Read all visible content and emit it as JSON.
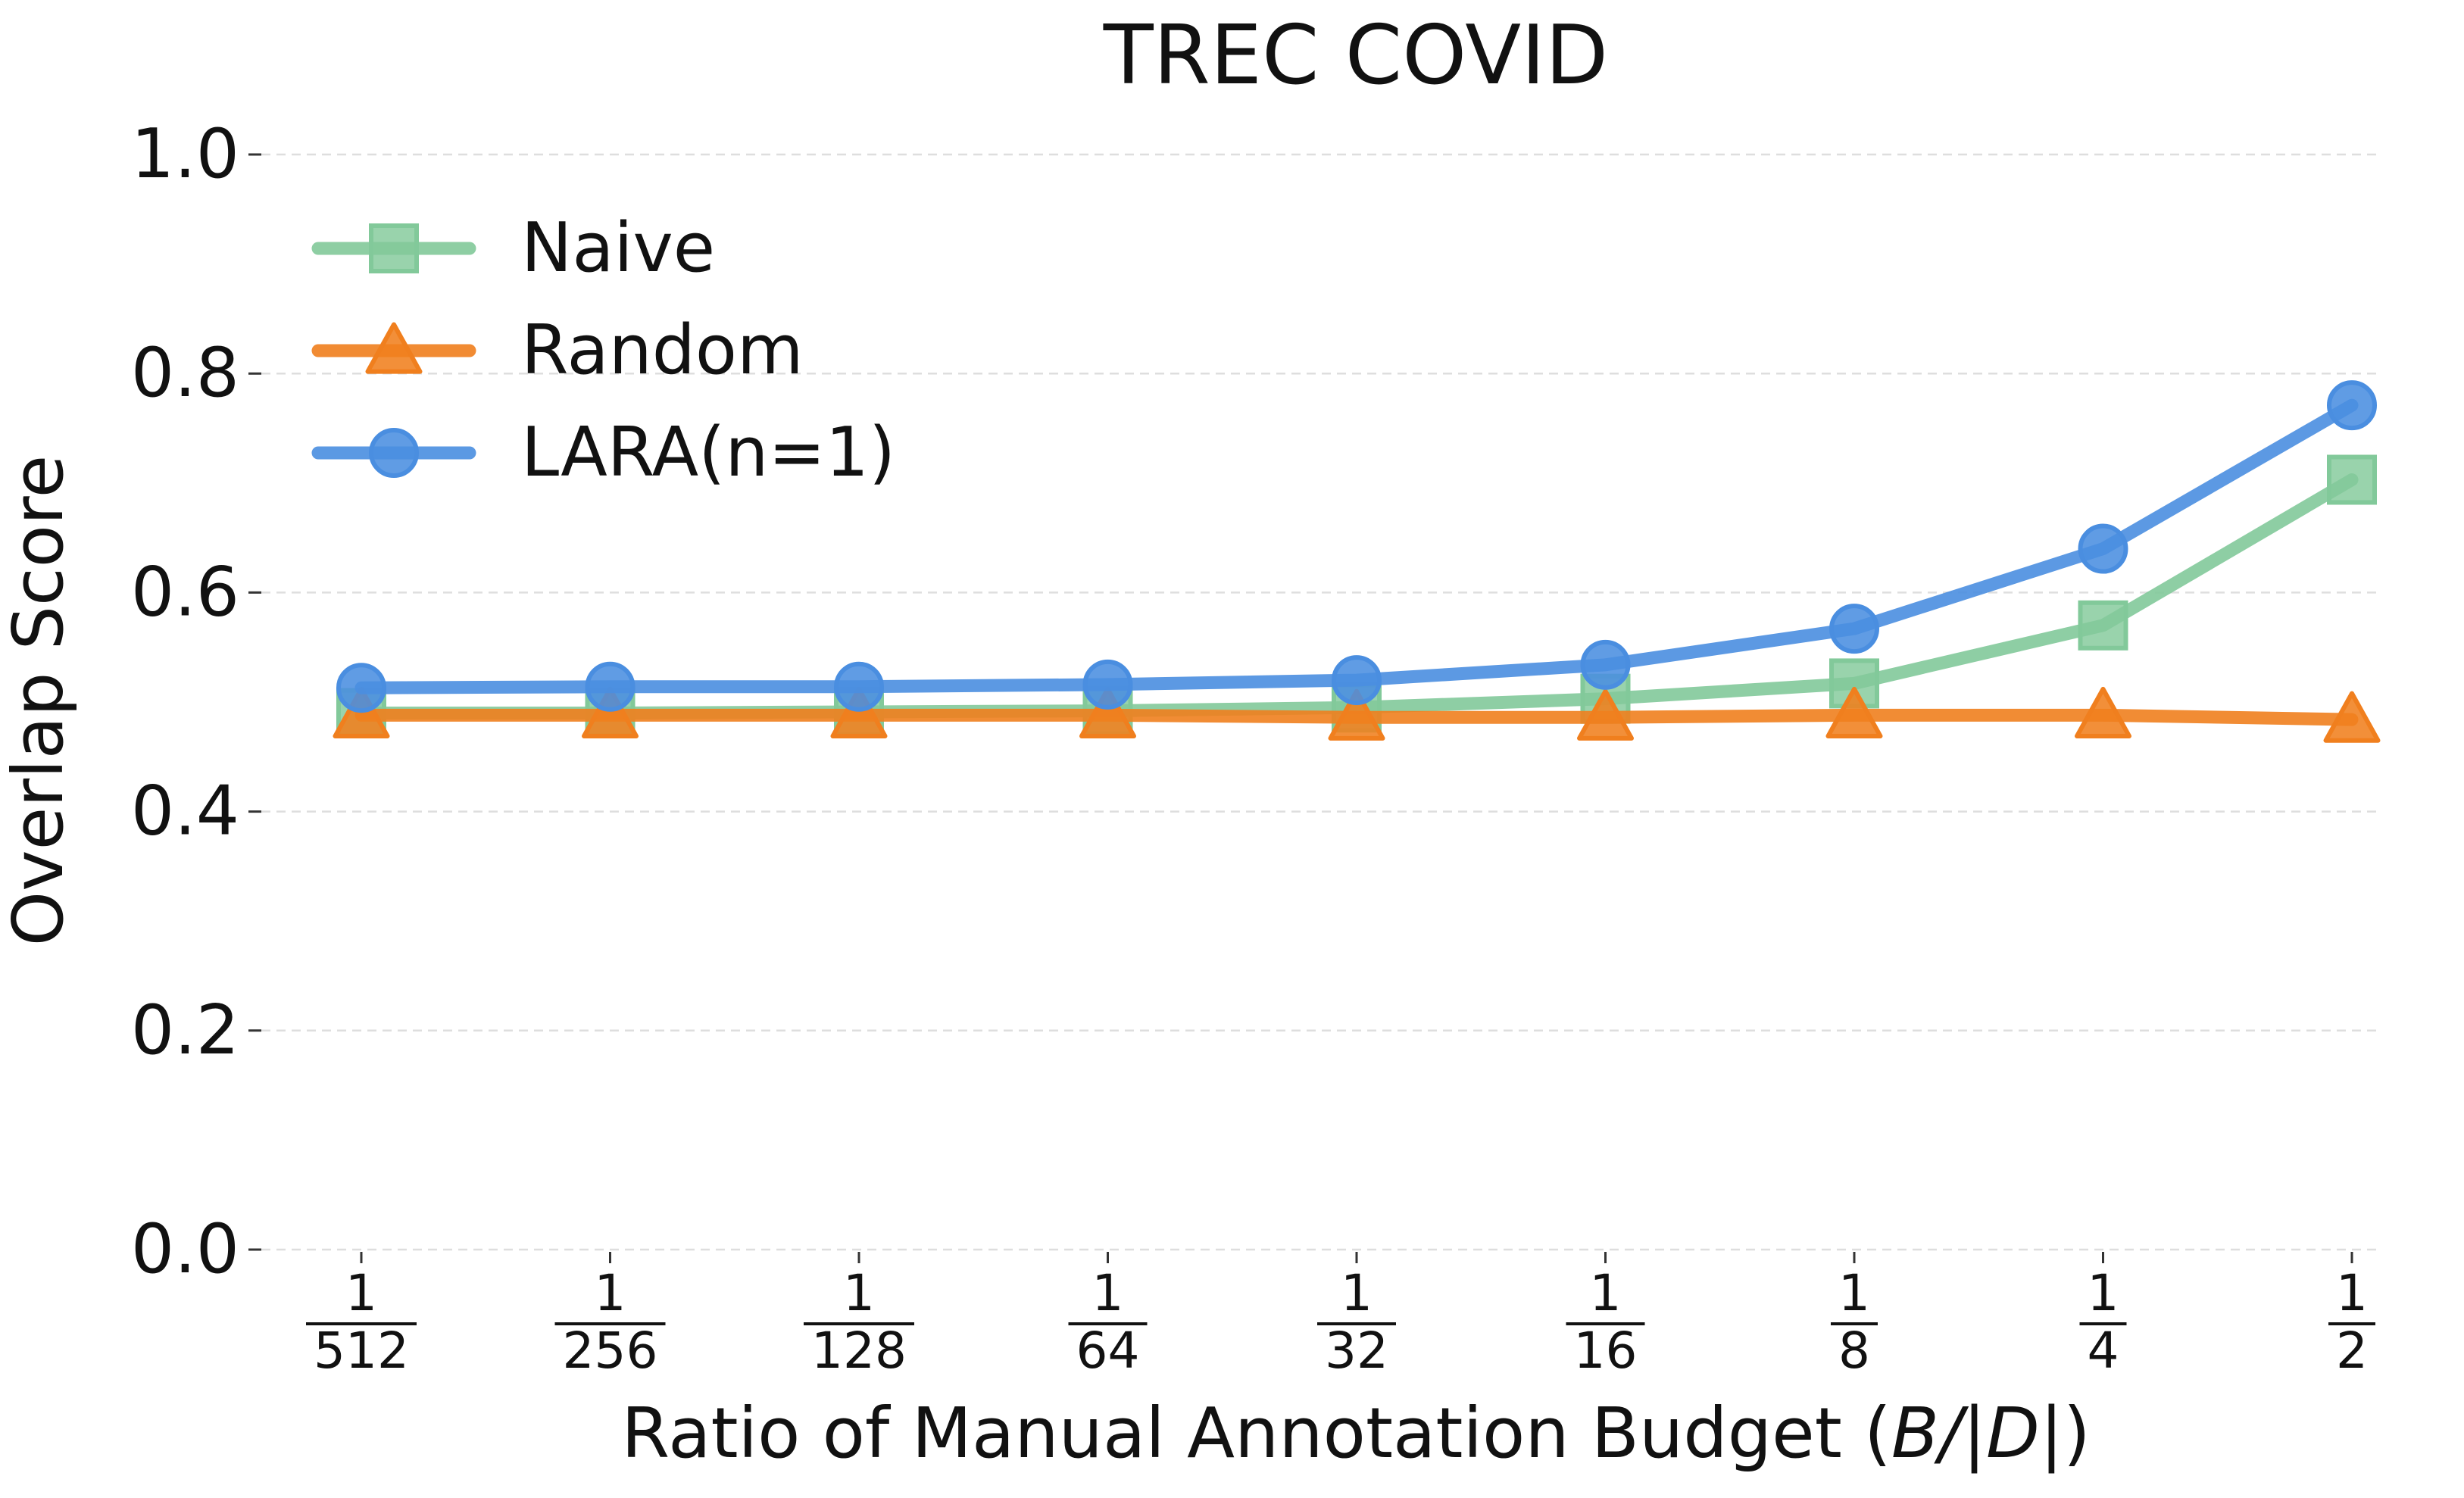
{
  "chart_data": {
    "type": "line",
    "title": "TREC COVID",
    "xlabel_prefix": "Ratio of Manual Annotation Budget (",
    "xlabel_math": "B/|D|",
    "xlabel_suffix": ")",
    "ylabel": "Overlap Score",
    "ylim": [
      0.0,
      1.0
    ],
    "yticks": [
      "0.0",
      "0.2",
      "0.4",
      "0.6",
      "0.8",
      "1.0"
    ],
    "categories": [
      {
        "num": "1",
        "den": "512"
      },
      {
        "num": "1",
        "den": "256"
      },
      {
        "num": "1",
        "den": "128"
      },
      {
        "num": "1",
        "den": "64"
      },
      {
        "num": "1",
        "den": "32"
      },
      {
        "num": "1",
        "den": "16"
      },
      {
        "num": "1",
        "den": "8"
      },
      {
        "num": "1",
        "den": "4"
      },
      {
        "num": "1",
        "den": "2"
      }
    ],
    "grid": "horizontal dashed",
    "legend_position": "top-left",
    "series": [
      {
        "name": "Naive",
        "marker": "square",
        "color": "#82c99a",
        "values": [
          0.49,
          0.49,
          0.491,
          0.492,
          0.495,
          0.503,
          0.517,
          0.57,
          0.703
        ]
      },
      {
        "name": "Random",
        "marker": "triangle",
        "color": "#f07f1e",
        "values": [
          0.488,
          0.488,
          0.488,
          0.488,
          0.486,
          0.486,
          0.488,
          0.488,
          0.484
        ]
      },
      {
        "name": "LARA(n=1)",
        "marker": "circle",
        "color": "#4a8ee0",
        "values": [
          0.513,
          0.514,
          0.514,
          0.516,
          0.52,
          0.534,
          0.567,
          0.64,
          0.771
        ]
      }
    ]
  }
}
